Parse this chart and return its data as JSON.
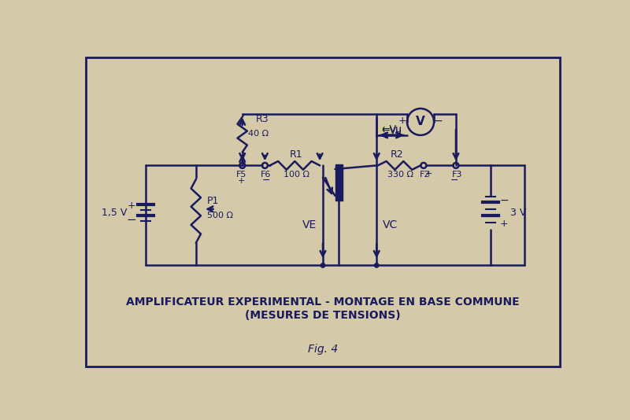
{
  "bg_color": "#d4c9a8",
  "line_color": "#1a1a5e",
  "title_line1": "AMPLIFICATEUR EXPERIMENTAL - MONTAGE EN BASE COMMUNE",
  "title_line2": "(MESURES DE TENSIONS)",
  "fig_label": "Fig. 4"
}
